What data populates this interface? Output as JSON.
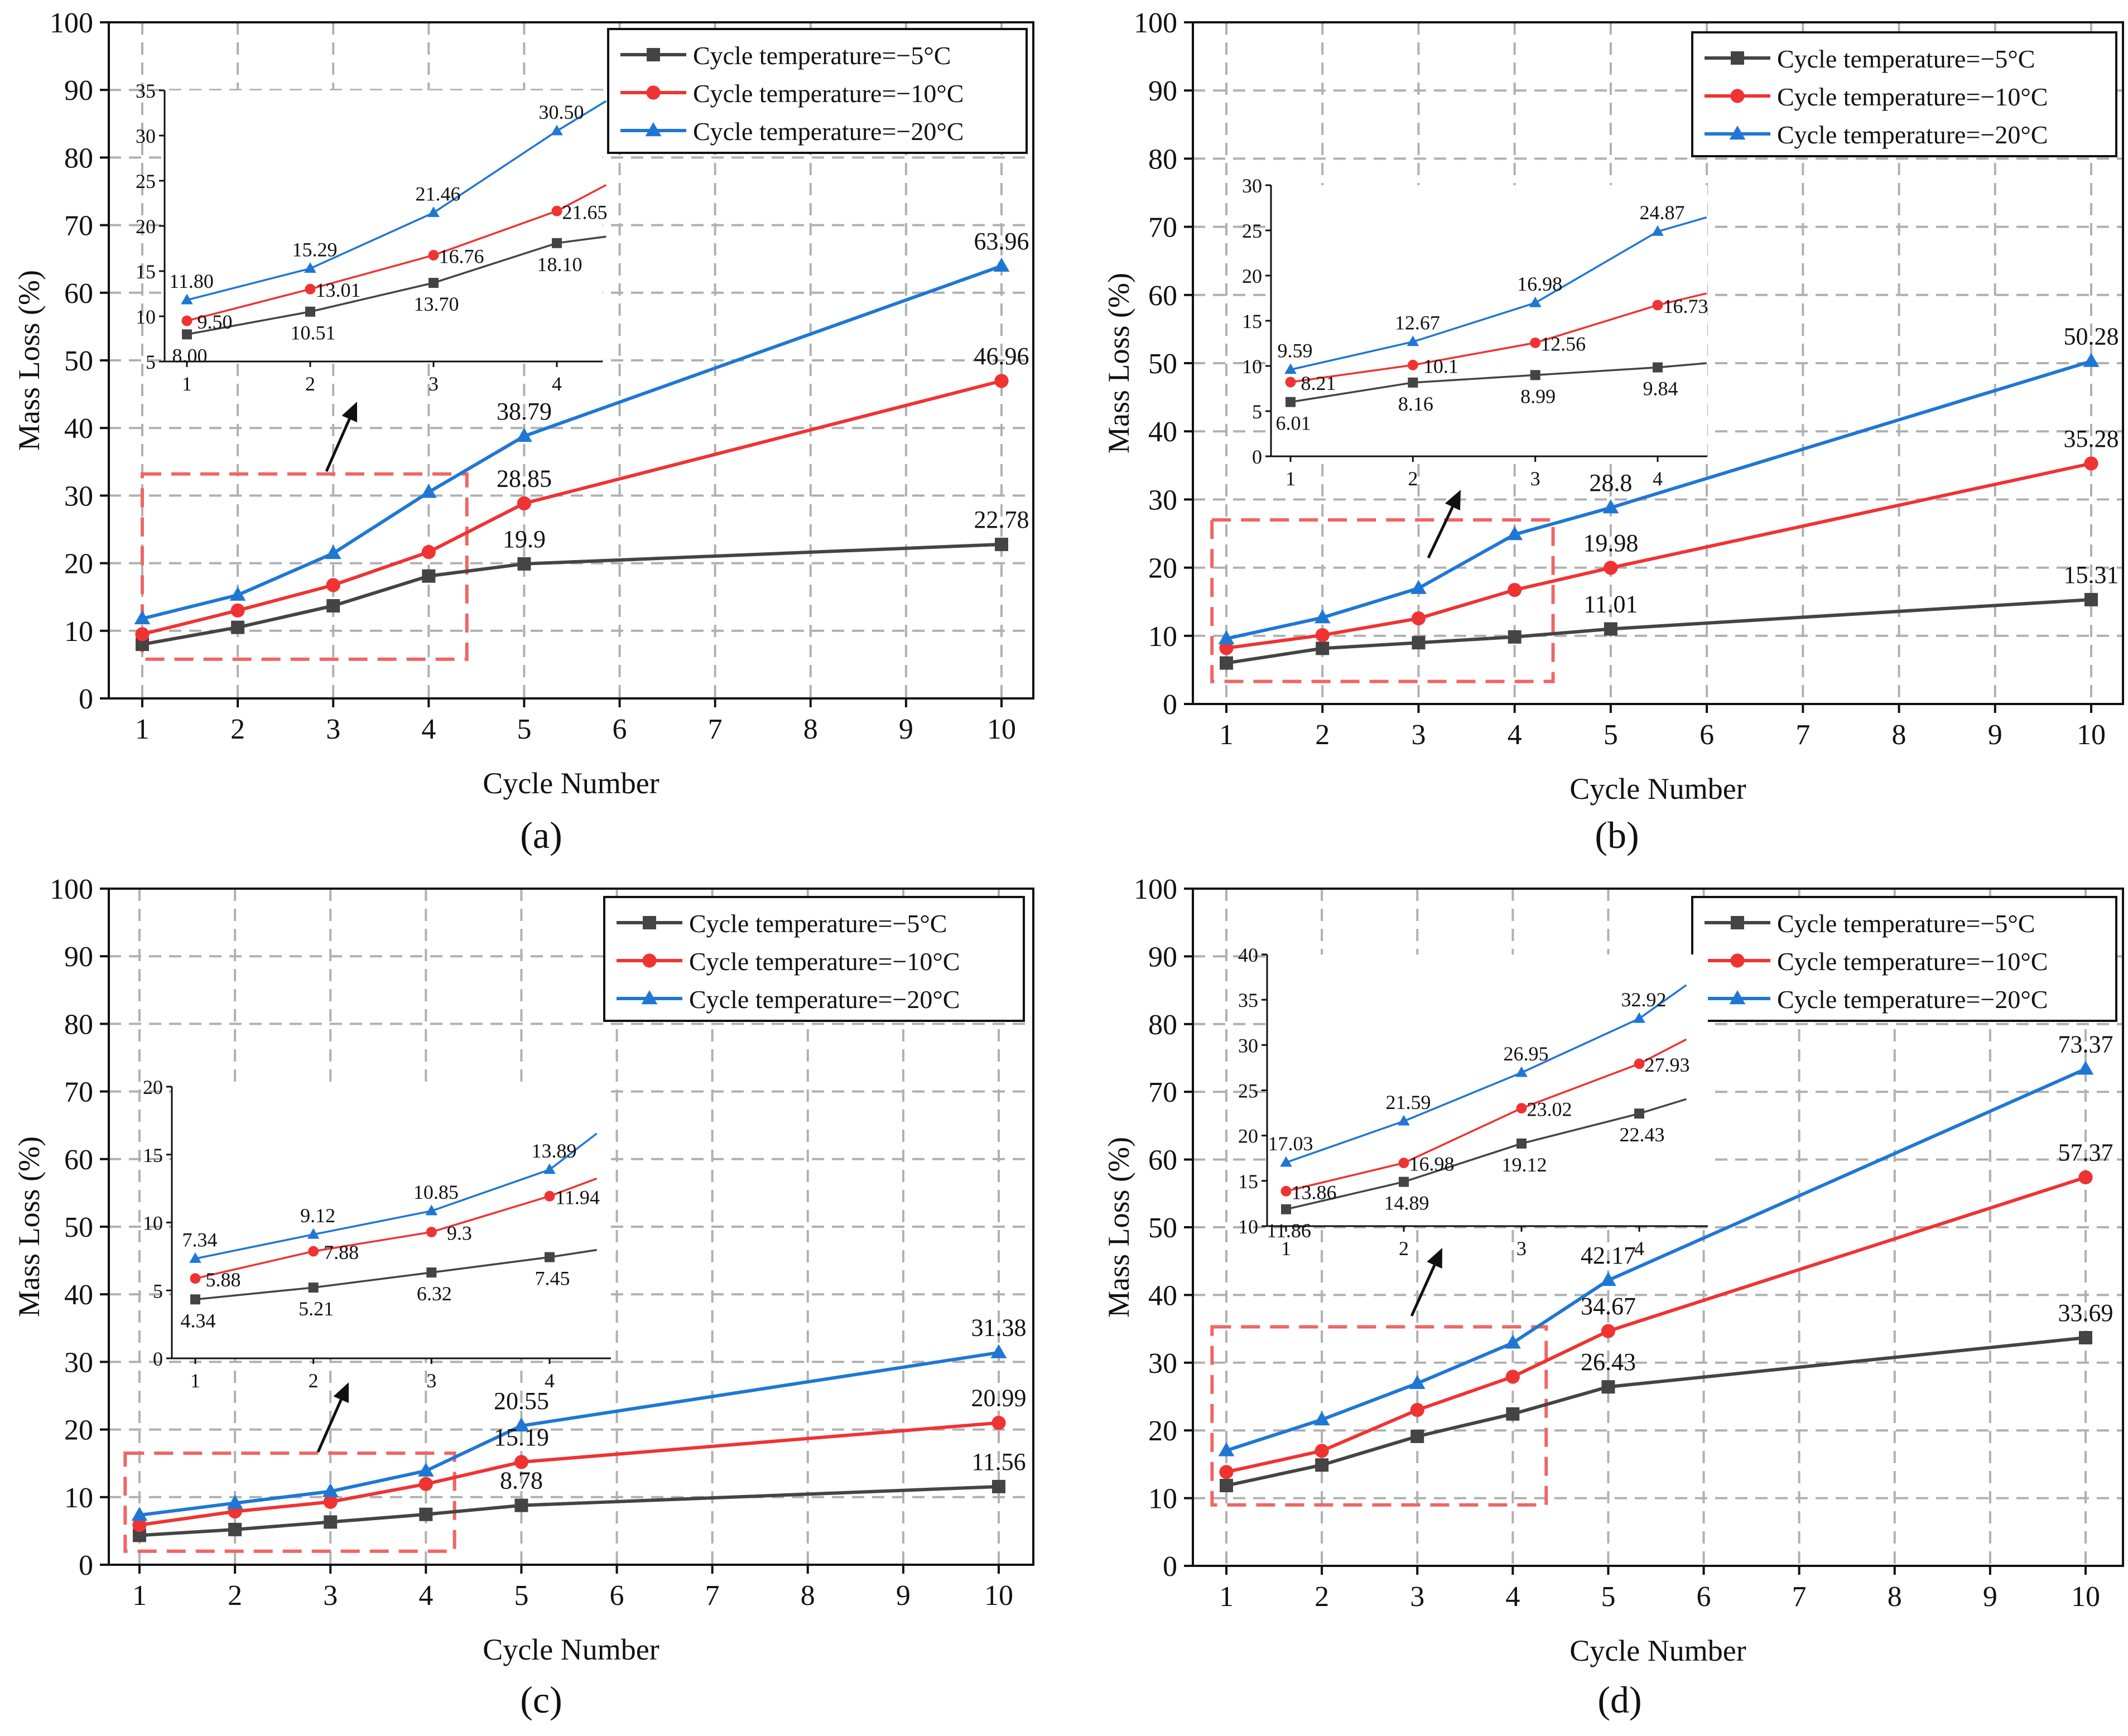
{
  "legend_labels": [
    "Cycle temperature=−5°C",
    "Cycle temperature=−10°C",
    "Cycle temperature=−20°C"
  ],
  "series_colors": [
    "#444444",
    "#ef3333",
    "#1f77d4"
  ],
  "chart_data": [
    {
      "type": "line",
      "panel_label": "(a)",
      "xlabel": "Cycle Number",
      "ylabel": "Mass Loss (%)",
      "ylim": [
        0,
        100
      ],
      "x_ticks": [
        "1",
        "2",
        "3",
        "4",
        "5",
        "6",
        "7",
        "8",
        "9",
        "10"
      ],
      "y_ticks": [
        "0",
        "10",
        "20",
        "30",
        "40",
        "50",
        "60",
        "70",
        "80",
        "90",
        "100"
      ],
      "x": [
        1,
        2,
        3,
        4,
        5,
        10
      ],
      "series": [
        {
          "name": "Cycle temperature=−5°C",
          "values": [
            8.0,
            10.51,
            13.7,
            18.1,
            19.9,
            22.78
          ]
        },
        {
          "name": "Cycle temperature=−10°C",
          "values": [
            9.5,
            13.01,
            16.76,
            21.65,
            28.85,
            46.96
          ]
        },
        {
          "name": "Cycle temperature=−20°C",
          "values": [
            11.8,
            15.29,
            21.46,
            30.5,
            38.79,
            63.96
          ]
        }
      ],
      "data_labels": [
        {
          "text": "19.9",
          "x": 5,
          "y": 19.9,
          "series": 0
        },
        {
          "text": "22.78",
          "x": 10,
          "y": 22.78,
          "series": 0
        },
        {
          "text": "28.85",
          "x": 5,
          "y": 28.85,
          "series": 1
        },
        {
          "text": "46.96",
          "x": 10,
          "y": 46.96,
          "series": 1
        },
        {
          "text": "38.79",
          "x": 5,
          "y": 38.79,
          "series": 2
        },
        {
          "text": "63.96",
          "x": 10,
          "y": 63.96,
          "series": 2
        }
      ],
      "inset": {
        "ylim": [
          5,
          35
        ],
        "y_ticks": [
          "5",
          "10",
          "15",
          "20",
          "25",
          "30",
          "35"
        ],
        "x_ticks": [
          "1",
          "2",
          "3",
          "4"
        ],
        "labels": [
          [
            "8.00",
            "10.51",
            "13.70",
            "18.10"
          ],
          [
            "9.50",
            "13.01",
            "16.76",
            "21.65"
          ],
          [
            "11.80",
            "15.29",
            "21.46",
            "30.50"
          ]
        ]
      }
    },
    {
      "type": "line",
      "panel_label": "(b)",
      "xlabel": "Cycle Number",
      "ylabel": "Mass Loss (%)",
      "ylim": [
        0,
        100
      ],
      "x_ticks": [
        "1",
        "2",
        "3",
        "4",
        "5",
        "6",
        "7",
        "8",
        "9",
        "10"
      ],
      "y_ticks": [
        "0",
        "10",
        "20",
        "30",
        "40",
        "50",
        "60",
        "70",
        "80",
        "90",
        "100"
      ],
      "x": [
        1,
        2,
        3,
        4,
        5,
        10
      ],
      "series": [
        {
          "name": "Cycle temperature=−5°C",
          "values": [
            6.01,
            8.16,
            8.99,
            9.84,
            11.01,
            15.31
          ]
        },
        {
          "name": "Cycle temperature=−10°C",
          "values": [
            8.21,
            10.1,
            12.56,
            16.73,
            19.98,
            35.28
          ]
        },
        {
          "name": "Cycle temperature=−20°C",
          "values": [
            9.59,
            12.67,
            16.98,
            24.87,
            28.8,
            50.28
          ]
        }
      ],
      "data_labels": [
        {
          "text": "11.01",
          "x": 5,
          "y": 11.01,
          "series": 0
        },
        {
          "text": "15.31",
          "x": 10,
          "y": 15.31,
          "series": 0
        },
        {
          "text": "19.98",
          "x": 5,
          "y": 19.98,
          "series": 1
        },
        {
          "text": "35.28",
          "x": 10,
          "y": 35.28,
          "series": 1
        },
        {
          "text": "28.8",
          "x": 5,
          "y": 28.8,
          "series": 2
        },
        {
          "text": "50.28",
          "x": 10,
          "y": 50.28,
          "series": 2
        }
      ],
      "inset": {
        "ylim": [
          0,
          30
        ],
        "y_ticks": [
          "0",
          "5",
          "10",
          "15",
          "20",
          "25",
          "30"
        ],
        "x_ticks": [
          "1",
          "2",
          "3",
          "4"
        ],
        "labels": [
          [
            "6.01",
            "8.16",
            "8.99",
            "9.84"
          ],
          [
            "8.21",
            "10.1",
            "12.56",
            "16.73"
          ],
          [
            "9.59",
            "12.67",
            "16.98",
            "24.87"
          ]
        ]
      }
    },
    {
      "type": "line",
      "panel_label": "(c)",
      "xlabel": "Cycle Number",
      "ylabel": "Mass Loss (%)",
      "ylim": [
        0,
        100
      ],
      "x_ticks": [
        "1",
        "2",
        "3",
        "4",
        "5",
        "6",
        "7",
        "8",
        "9",
        "10"
      ],
      "y_ticks": [
        "0",
        "10",
        "20",
        "30",
        "40",
        "50",
        "60",
        "70",
        "80",
        "90",
        "100"
      ],
      "x": [
        1,
        2,
        3,
        4,
        5,
        10
      ],
      "series": [
        {
          "name": "Cycle temperature=−5°C",
          "values": [
            4.34,
            5.21,
            6.32,
            7.45,
            8.78,
            11.56
          ]
        },
        {
          "name": "Cycle temperature=−10°C",
          "values": [
            5.88,
            7.88,
            9.3,
            11.94,
            15.19,
            20.99
          ]
        },
        {
          "name": "Cycle temperature=−20°C",
          "values": [
            7.34,
            9.12,
            10.85,
            13.89,
            20.55,
            31.38
          ]
        }
      ],
      "data_labels": [
        {
          "text": "8.78",
          "x": 5,
          "y": 8.78,
          "series": 0
        },
        {
          "text": "11.56",
          "x": 10,
          "y": 11.56,
          "series": 0
        },
        {
          "text": "15.19",
          "x": 5,
          "y": 15.19,
          "series": 1
        },
        {
          "text": "20.99",
          "x": 10,
          "y": 20.99,
          "series": 1
        },
        {
          "text": "20.55",
          "x": 5,
          "y": 20.55,
          "series": 2
        },
        {
          "text": "31.38",
          "x": 10,
          "y": 31.38,
          "series": 2
        }
      ],
      "inset": {
        "ylim": [
          0,
          20
        ],
        "y_ticks": [
          "0",
          "5",
          "10",
          "15",
          "20"
        ],
        "x_ticks": [
          "1",
          "2",
          "3",
          "4"
        ],
        "labels": [
          [
            "4.34",
            "5.21",
            "6.32",
            "7.45"
          ],
          [
            "5.88",
            "7.88",
            "9.3",
            "11.94"
          ],
          [
            "7.34",
            "9.12",
            "10.85",
            "13.89"
          ]
        ]
      }
    },
    {
      "type": "line",
      "panel_label": "(d)",
      "xlabel": "Cycle Number",
      "ylabel": "Mass Loss (%)",
      "ylim": [
        0,
        100
      ],
      "x_ticks": [
        "1",
        "2",
        "3",
        "4",
        "5",
        "6",
        "7",
        "8",
        "9",
        "10"
      ],
      "y_ticks": [
        "0",
        "10",
        "20",
        "30",
        "40",
        "50",
        "60",
        "70",
        "80",
        "90",
        "100"
      ],
      "x": [
        1,
        2,
        3,
        4,
        5,
        10
      ],
      "series": [
        {
          "name": "Cycle temperature=−5°C",
          "values": [
            11.86,
            14.89,
            19.12,
            22.43,
            26.43,
            33.69
          ]
        },
        {
          "name": "Cycle temperature=−10°C",
          "values": [
            13.86,
            16.98,
            23.02,
            27.93,
            34.67,
            57.37
          ]
        },
        {
          "name": "Cycle temperature=−20°C",
          "values": [
            17.03,
            21.59,
            26.95,
            32.92,
            42.17,
            73.37
          ]
        }
      ],
      "data_labels": [
        {
          "text": "26.43",
          "x": 5,
          "y": 26.43,
          "series": 0
        },
        {
          "text": "33.69",
          "x": 10,
          "y": 33.69,
          "series": 0
        },
        {
          "text": "34.67",
          "x": 5,
          "y": 34.67,
          "series": 1
        },
        {
          "text": "57.37",
          "x": 10,
          "y": 57.37,
          "series": 1
        },
        {
          "text": "42.17",
          "x": 5,
          "y": 42.17,
          "series": 2
        },
        {
          "text": "73.37",
          "x": 10,
          "y": 73.37,
          "series": 2
        }
      ],
      "inset": {
        "ylim": [
          10,
          40
        ],
        "y_ticks": [
          "10",
          "15",
          "20",
          "25",
          "30",
          "35",
          "40"
        ],
        "x_ticks": [
          "1",
          "2",
          "3",
          "4"
        ],
        "labels": [
          [
            "11.86",
            "14.89",
            "19.12",
            "22.43"
          ],
          [
            "13.86",
            "16.98",
            "23.02",
            "27.93"
          ],
          [
            "17.03",
            "21.59",
            "26.95",
            "32.92"
          ]
        ]
      }
    }
  ]
}
